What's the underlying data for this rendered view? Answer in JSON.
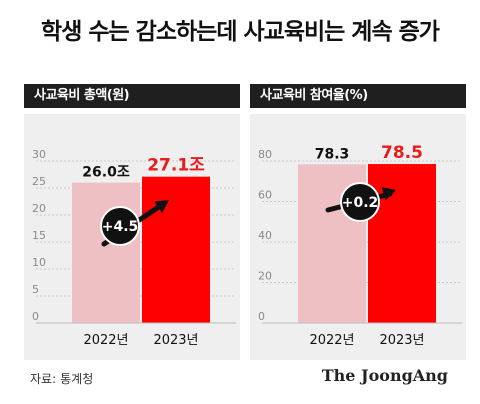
{
  "title": "학생 수는 감소하는데 사교육비는 계속 증가",
  "source": {
    "label": "자료:",
    "value": "통계청"
  },
  "brand": "The JoongAng",
  "colors": {
    "bar_prev": "#efc0c3",
    "bar_curr": "#ff0000",
    "label_curr": "#e81c1c",
    "header_bg": "#1f1f1f",
    "panel_bg": "#efefef"
  },
  "chart_data": [
    {
      "type": "bar",
      "title": "사교육비 총액(원)",
      "categories": [
        "2022년",
        "2023년"
      ],
      "values": [
        26.0,
        27.1
      ],
      "data_labels": [
        "26.0조",
        "27.1조"
      ],
      "ylim": [
        0,
        30
      ],
      "yticks": [
        "0",
        "5",
        "10",
        "15",
        "20",
        "25",
        "30"
      ],
      "grid": true,
      "annotation": "+4.5"
    },
    {
      "type": "bar",
      "title": "사교육비 참여율(%)",
      "categories": [
        "2022년",
        "2023년"
      ],
      "values": [
        78.3,
        78.5
      ],
      "data_labels": [
        "78.3",
        "78.5"
      ],
      "ylim": [
        0,
        80
      ],
      "yticks": [
        "0",
        "20",
        "40",
        "60",
        "80"
      ],
      "grid": true,
      "annotation": "+0.2"
    }
  ]
}
